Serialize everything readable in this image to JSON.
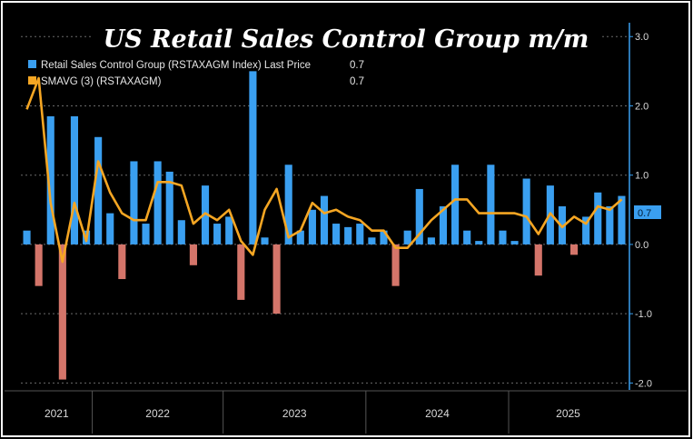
{
  "chart_data": {
    "type": "bar",
    "title": "US Retail Sales Control Group m/m",
    "legend": [
      {
        "label": "Retail Sales Control Group (RSTAXAGM Index) Last Price",
        "value": "0.7",
        "color": "#3a9ff0"
      },
      {
        "label": "SMAVG (3) (RSTAXAGM)",
        "value": "0.7",
        "color": "#f5a623"
      }
    ],
    "last_value_tag": "0.7",
    "y_ticks": [
      "-2.0",
      "-1.0",
      "0.0",
      "1.0",
      "2.0",
      "3.0"
    ],
    "ylim": [
      -2.1,
      3.2
    ],
    "years": [
      "2021",
      "2022",
      "2023",
      "2024",
      "2025"
    ],
    "values": [
      0.2,
      -0.6,
      1.85,
      -1.95,
      1.85,
      0.2,
      1.55,
      0.45,
      -0.5,
      1.2,
      0.3,
      1.2,
      1.05,
      0.35,
      -0.3,
      0.85,
      0.3,
      0.4,
      -0.8,
      2.5,
      0.1,
      -1.0,
      1.15,
      0.2,
      0.5,
      0.7,
      0.3,
      0.25,
      0.3,
      0.1,
      0.2,
      -0.6,
      0.2,
      0.8,
      0.1,
      0.55,
      1.15,
      0.2,
      0.05,
      1.15,
      0.2,
      0.05,
      0.95,
      -0.45,
      0.85,
      0.55,
      -0.15,
      0.4,
      0.75,
      0.55,
      0.7
    ],
    "sma": [
      1.95,
      2.4,
      0.6,
      -0.25,
      0.6,
      0.05,
      1.2,
      0.75,
      0.45,
      0.35,
      0.35,
      0.9,
      0.9,
      0.85,
      0.3,
      0.45,
      0.35,
      0.5,
      0.05,
      -0.15,
      0.5,
      0.8,
      0.1,
      0.2,
      0.6,
      0.45,
      0.5,
      0.4,
      0.35,
      0.2,
      0.2,
      -0.05,
      -0.05,
      0.15,
      0.35,
      0.5,
      0.65,
      0.65,
      0.45,
      0.45,
      0.45,
      0.45,
      0.4,
      0.15,
      0.45,
      0.25,
      0.4,
      0.3,
      0.55,
      0.5,
      0.65
    ]
  }
}
